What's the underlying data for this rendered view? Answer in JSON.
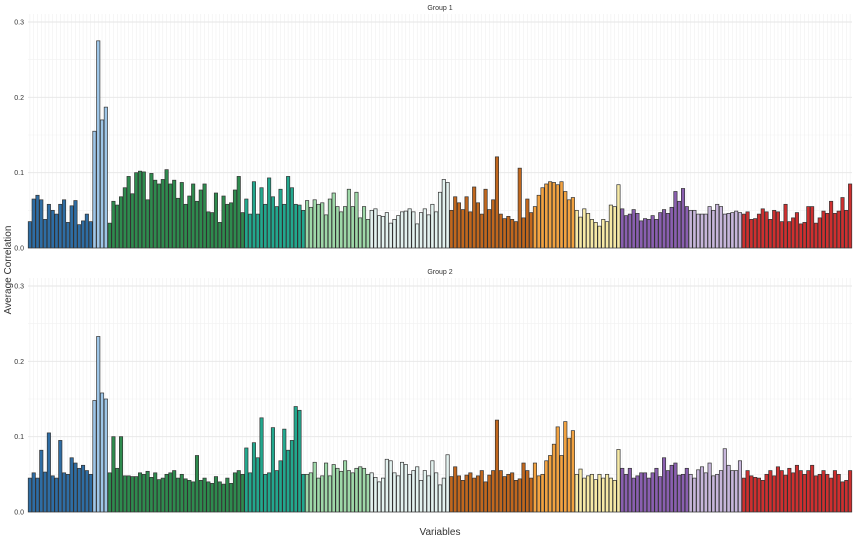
{
  "chart_data": {
    "type": "bar",
    "xlabel": "Variables",
    "ylabel": "Average Correlation",
    "ylim": [
      0,
      0.3
    ],
    "yticks": [
      "0.0",
      "0.1",
      "0.2",
      "0.3"
    ],
    "grid": true,
    "legend": "none",
    "group_colors": [
      "#2e6da4",
      "#9ec6e8",
      "#2e8b4e",
      "#22a88e",
      "#9ed8a8",
      "#e3f2ef",
      "#c1671d",
      "#f2a240",
      "#f6e9a6",
      "#8a5fb0",
      "#c7b6db",
      "#cf2f2f"
    ],
    "panels": [
      {
        "title": "Group 1",
        "groups": [
          {
            "values": [
              0.035,
              0.065,
              0.07,
              0.064,
              0.038,
              0.058,
              0.05,
              0.045,
              0.058,
              0.064,
              0.034,
              0.056,
              0.063,
              0.031,
              0.036,
              0.045,
              0.035
            ]
          },
          {
            "values": [
              0.155,
              0.275,
              0.17,
              0.187
            ]
          },
          {
            "values": [
              0.033,
              0.062,
              0.057,
              0.068,
              0.08,
              0.095,
              0.072,
              0.1,
              0.102,
              0.101,
              0.064,
              0.099,
              0.09,
              0.085,
              0.091,
              0.104,
              0.085,
              0.09,
              0.066,
              0.087,
              0.058,
              0.069,
              0.085,
              0.062,
              0.077,
              0.085,
              0.048,
              0.047,
              0.073,
              0.034,
              0.069,
              0.058,
              0.06,
              0.077,
              0.095,
              0.047
            ]
          },
          {
            "values": [
              0.065,
              0.045,
              0.088,
              0.045,
              0.08,
              0.058,
              0.093,
              0.068,
              0.055,
              0.078,
              0.058,
              0.095,
              0.08,
              0.058,
              0.057,
              0.05
            ]
          },
          {
            "values": [
              0.063,
              0.054,
              0.064,
              0.058,
              0.06,
              0.044,
              0.065,
              0.073,
              0.055,
              0.048,
              0.055,
              0.078,
              0.055,
              0.074,
              0.04,
              0.055,
              0.038
            ]
          },
          {
            "values": [
              0.05,
              0.052,
              0.043,
              0.042,
              0.047,
              0.033,
              0.038,
              0.043,
              0.048,
              0.049,
              0.052,
              0.048,
              0.032,
              0.047,
              0.052,
              0.044,
              0.058,
              0.048,
              0.074,
              0.091,
              0.087
            ]
          },
          {
            "values": [
              0.05,
              0.068,
              0.06,
              0.051,
              0.068,
              0.048,
              0.081,
              0.06,
              0.045,
              0.078,
              0.051,
              0.064,
              0.121,
              0.045,
              0.039,
              0.042,
              0.038,
              0.035,
              0.106,
              0.04,
              0.065,
              0.047
            ]
          },
          {
            "values": [
              0.055,
              0.07,
              0.08,
              0.085,
              0.088,
              0.087,
              0.084,
              0.088,
              0.075,
              0.064,
              0.067
            ]
          },
          {
            "values": [
              0.05,
              0.041,
              0.052,
              0.046,
              0.038,
              0.034,
              0.029,
              0.038,
              0.035,
              0.057,
              0.055,
              0.084
            ]
          },
          {
            "values": [
              0.052,
              0.043,
              0.045,
              0.051,
              0.046,
              0.036,
              0.039,
              0.038,
              0.043,
              0.038,
              0.047,
              0.051,
              0.046,
              0.054,
              0.075,
              0.062,
              0.079,
              0.055
            ]
          },
          {
            "values": [
              0.05,
              0.05,
              0.045,
              0.045,
              0.045,
              0.055,
              0.05,
              0.058,
              0.055,
              0.045,
              0.046,
              0.047,
              0.049,
              0.047
            ]
          },
          {
            "values": [
              0.045,
              0.048,
              0.038,
              0.039,
              0.045,
              0.052,
              0.048,
              0.038,
              0.05,
              0.048,
              0.035,
              0.058,
              0.035,
              0.04,
              0.047,
              0.032,
              0.034,
              0.055,
              0.055,
              0.033,
              0.04,
              0.049,
              0.046,
              0.062,
              0.046,
              0.049,
              0.067,
              0.05,
              0.085
            ]
          }
        ]
      },
      {
        "title": "Group 2",
        "groups": [
          {
            "values": [
              0.045,
              0.052,
              0.045,
              0.082,
              0.053,
              0.105,
              0.048,
              0.045,
              0.095,
              0.052,
              0.05,
              0.072,
              0.065,
              0.058,
              0.062,
              0.055,
              0.05
            ]
          },
          {
            "values": [
              0.148,
              0.233,
              0.158,
              0.15
            ]
          },
          {
            "values": [
              0.052,
              0.1,
              0.058,
              0.1,
              0.048,
              0.048,
              0.047,
              0.047,
              0.052,
              0.05,
              0.054,
              0.046,
              0.052,
              0.043,
              0.045,
              0.05,
              0.052,
              0.055,
              0.045,
              0.05,
              0.044,
              0.042,
              0.04,
              0.075,
              0.042,
              0.045,
              0.04,
              0.038,
              0.047,
              0.04,
              0.037,
              0.045,
              0.038,
              0.052,
              0.055,
              0.05
            ]
          },
          {
            "values": [
              0.085,
              0.052,
              0.092,
              0.072,
              0.125,
              0.05,
              0.052,
              0.112,
              0.055,
              0.068,
              0.11,
              0.082,
              0.095,
              0.14,
              0.135,
              0.05
            ]
          },
          {
            "values": [
              0.05,
              0.052,
              0.066,
              0.045,
              0.048,
              0.065,
              0.048,
              0.063,
              0.058,
              0.054,
              0.068,
              0.055,
              0.052,
              0.058,
              0.06,
              0.058,
              0.05
            ]
          },
          {
            "values": [
              0.052,
              0.046,
              0.04,
              0.045,
              0.07,
              0.068,
              0.052,
              0.048,
              0.066,
              0.063,
              0.05,
              0.055,
              0.06,
              0.042,
              0.055,
              0.048,
              0.068,
              0.052,
              0.036,
              0.045,
              0.076
            ]
          },
          {
            "values": [
              0.047,
              0.06,
              0.048,
              0.042,
              0.049,
              0.052,
              0.045,
              0.048,
              0.055,
              0.04,
              0.049,
              0.055,
              0.122,
              0.055,
              0.047,
              0.05,
              0.052,
              0.042,
              0.044,
              0.065,
              0.055,
              0.045
            ]
          },
          {
            "values": [
              0.065,
              0.048,
              0.05,
              0.068,
              0.075,
              0.09,
              0.113,
              0.075,
              0.12,
              0.098,
              0.108
            ]
          },
          {
            "values": [
              0.05,
              0.057,
              0.045,
              0.048,
              0.05,
              0.043,
              0.05,
              0.045,
              0.05,
              0.045,
              0.042,
              0.083
            ]
          },
          {
            "values": [
              0.058,
              0.05,
              0.058,
              0.045,
              0.048,
              0.052,
              0.052,
              0.045,
              0.052,
              0.058,
              0.047,
              0.072,
              0.055,
              0.062,
              0.065,
              0.049,
              0.05,
              0.058
            ]
          },
          {
            "values": [
              0.05,
              0.045,
              0.056,
              0.06,
              0.052,
              0.065,
              0.048,
              0.05,
              0.055,
              0.084,
              0.062,
              0.055,
              0.055,
              0.068
            ]
          },
          {
            "values": [
              0.045,
              0.055,
              0.048,
              0.046,
              0.045,
              0.042,
              0.05,
              0.055,
              0.048,
              0.06,
              0.055,
              0.049,
              0.058,
              0.052,
              0.062,
              0.055,
              0.05,
              0.055,
              0.062,
              0.048,
              0.05,
              0.055,
              0.05,
              0.045,
              0.055,
              0.05,
              0.04,
              0.042,
              0.055
            ]
          }
        ]
      }
    ]
  }
}
